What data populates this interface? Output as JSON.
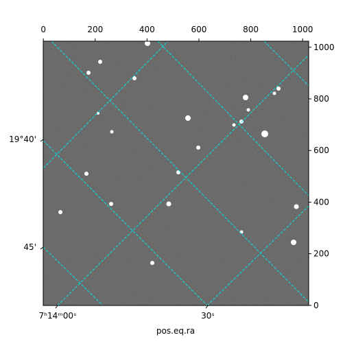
{
  "chart_data": {
    "type": "image",
    "xlabel": "pos.eq.ra",
    "xlim": [
      -0.5,
      1023.5
    ],
    "ylim": [
      -0.5,
      1023.5
    ],
    "xticks": [
      0,
      200,
      400,
      600,
      800,
      1000
    ],
    "yticks": [
      0,
      200,
      400,
      600,
      800,
      1000
    ],
    "ra_ticks": [
      "7ʰ14ᵐ00ˢ",
      "30ˢ"
    ],
    "dec_ticks": [
      "19°40'",
      "45'"
    ],
    "grid_color": "#00e5e5"
  }
}
